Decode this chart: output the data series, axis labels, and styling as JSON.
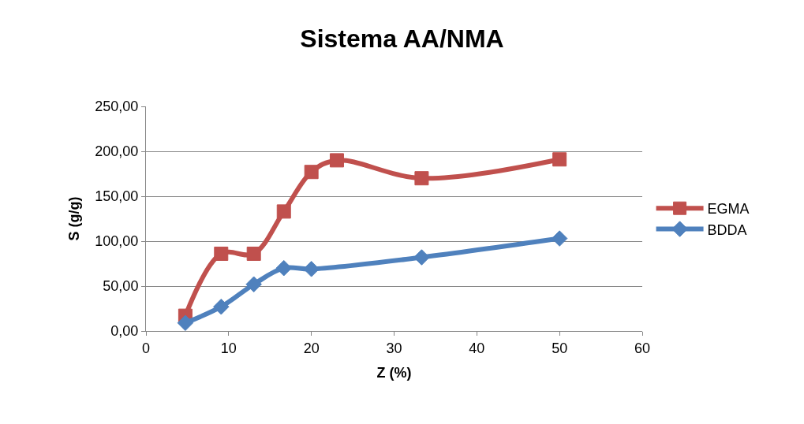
{
  "chart_data": {
    "type": "line",
    "title": "Sistema AA/NMA",
    "xlabel": "Z (%)",
    "ylabel": "S (g/g)",
    "x": [
      4.76,
      9.09,
      13.04,
      16.67,
      20,
      23.08,
      33.33,
      50
    ],
    "series": [
      {
        "name": "EGMA",
        "color": "#c0504d",
        "marker": "square",
        "values": [
          17,
          86,
          86,
          133,
          177,
          190,
          170,
          191
        ]
      },
      {
        "name": "BDDA",
        "color": "#4f81bd",
        "marker": "diamond",
        "x": [
          4.76,
          9.09,
          13.04,
          16.67,
          20,
          33.33,
          50
        ],
        "values": [
          9,
          27,
          52,
          70,
          69,
          82,
          103
        ]
      }
    ],
    "xlim": [
      0,
      60
    ],
    "xticks": [
      0,
      10,
      20,
      30,
      40,
      50,
      60
    ],
    "ylim": [
      0,
      250
    ],
    "yticks": [
      {
        "value": 0,
        "label": "0,00"
      },
      {
        "value": 50,
        "label": "50,00"
      },
      {
        "value": 100,
        "label": "100,00"
      },
      {
        "value": 150,
        "label": "150,00"
      },
      {
        "value": 200,
        "label": "200,00"
      },
      {
        "value": 250,
        "label": "250,00"
      }
    ],
    "grid": "y",
    "legend": "right",
    "line_style": "solid"
  }
}
